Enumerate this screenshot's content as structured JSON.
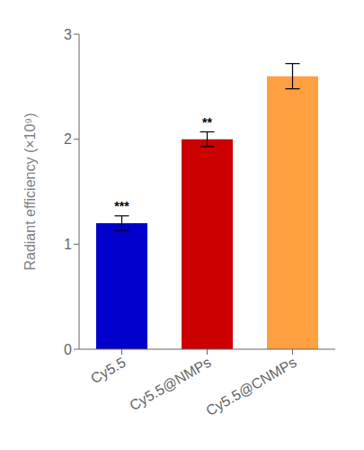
{
  "chart_data": {
    "type": "bar",
    "categories": [
      "Cy5.5",
      "Cy5.5@NMPs",
      "Cy5.5@CNMPs"
    ],
    "values": [
      1.2,
      2.0,
      2.6
    ],
    "errors": [
      0.07,
      0.07,
      0.12
    ],
    "colors": [
      "#0000cc",
      "#cc0000",
      "#ffa040"
    ],
    "y_label": "Radiant efficiency (×10⁹)",
    "ylim": [
      0,
      3
    ],
    "yticks": [
      0,
      1,
      2,
      3
    ],
    "grid": false,
    "annotations": [
      {
        "category": "Cy5.5",
        "text": "***"
      },
      {
        "category": "Cy5.5@NMPs",
        "text": "**"
      }
    ]
  }
}
